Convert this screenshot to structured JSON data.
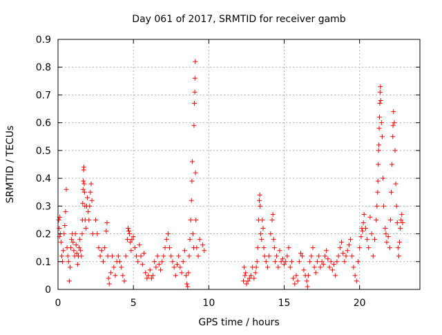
{
  "chart_data": {
    "type": "scatter",
    "title": "Day 061 of 2017, SRMTID for receiver gamb",
    "xlabel": "GPS time / hours",
    "ylabel": "SRMTID / TECUs",
    "xlim": [
      0,
      24
    ],
    "ylim": [
      0,
      0.9
    ],
    "xticks": [
      0,
      5,
      10,
      15,
      20
    ],
    "yticks": [
      0,
      0.1,
      0.2,
      0.3,
      0.4,
      0.5,
      0.6,
      0.7,
      0.8,
      0.9
    ],
    "xtick_labels": [
      "0",
      "5",
      "10",
      "15",
      "20"
    ],
    "ytick_labels": [
      "0",
      "0.1",
      "0.2",
      "0.3",
      "0.4",
      "0.5",
      "0.6",
      "0.7",
      "0.8",
      "0.9"
    ],
    "grid": true,
    "marker": "+",
    "marker_color": "#ff0000",
    "series": [
      {
        "name": "SRMTID",
        "points": [
          [
            0.05,
            0.25
          ],
          [
            0.08,
            0.22
          ],
          [
            0.1,
            0.19
          ],
          [
            0.12,
            0.26
          ],
          [
            0.15,
            0.2
          ],
          [
            0.2,
            0.17
          ],
          [
            0.25,
            0.12
          ],
          [
            0.3,
            0.1
          ],
          [
            0.35,
            0.14
          ],
          [
            0.4,
            0.2
          ],
          [
            0.45,
            0.23
          ],
          [
            0.5,
            0.28
          ],
          [
            0.55,
            0.36
          ],
          [
            0.6,
            0.15
          ],
          [
            0.65,
            0.12
          ],
          [
            0.7,
            0.1
          ],
          [
            0.75,
            0.03
          ],
          [
            0.8,
            0.08
          ],
          [
            0.85,
            0.15
          ],
          [
            0.9,
            0.18
          ],
          [
            0.95,
            0.2
          ],
          [
            1.0,
            0.17
          ],
          [
            1.05,
            0.14
          ],
          [
            1.1,
            0.12
          ],
          [
            1.15,
            0.2
          ],
          [
            1.2,
            0.16
          ],
          [
            1.25,
            0.13
          ],
          [
            1.3,
            0.09
          ],
          [
            1.35,
            0.12
          ],
          [
            1.4,
            0.15
          ],
          [
            1.45,
            0.18
          ],
          [
            1.5,
            0.14
          ],
          [
            1.55,
            0.12
          ],
          [
            1.6,
            0.2
          ],
          [
            1.62,
            0.25
          ],
          [
            1.64,
            0.31
          ],
          [
            1.66,
            0.36
          ],
          [
            1.68,
            0.39
          ],
          [
            1.7,
            0.43
          ],
          [
            1.72,
            0.44
          ],
          [
            1.74,
            0.38
          ],
          [
            1.76,
            0.35
          ],
          [
            1.78,
            0.3
          ],
          [
            1.8,
            0.25
          ],
          [
            1.85,
            0.22
          ],
          [
            1.9,
            0.3
          ],
          [
            1.95,
            0.33
          ],
          [
            2.0,
            0.28
          ],
          [
            2.05,
            0.25
          ],
          [
            2.1,
            0.3
          ],
          [
            2.15,
            0.35
          ],
          [
            2.2,
            0.38
          ],
          [
            2.25,
            0.32
          ],
          [
            2.3,
            0.2
          ],
          [
            2.5,
            0.25
          ],
          [
            2.6,
            0.2
          ],
          [
            2.7,
            0.15
          ],
          [
            2.8,
            0.12
          ],
          [
            2.9,
            0.14
          ],
          [
            3.0,
            0.1
          ],
          [
            3.1,
            0.15
          ],
          [
            3.2,
            0.21
          ],
          [
            3.25,
            0.24
          ],
          [
            3.3,
            0.12
          ],
          [
            3.35,
            0.04
          ],
          [
            3.4,
            0.02
          ],
          [
            3.5,
            0.06
          ],
          [
            3.6,
            0.12
          ],
          [
            3.7,
            0.08
          ],
          [
            3.8,
            0.05
          ],
          [
            3.9,
            0.1
          ],
          [
            4.0,
            0.12
          ],
          [
            4.1,
            0.1
          ],
          [
            4.2,
            0.08
          ],
          [
            4.3,
            0.05
          ],
          [
            4.4,
            0.03
          ],
          [
            4.5,
            0.12
          ],
          [
            4.6,
            0.18
          ],
          [
            4.65,
            0.22
          ],
          [
            4.7,
            0.21
          ],
          [
            4.75,
            0.2
          ],
          [
            4.8,
            0.17
          ],
          [
            4.85,
            0.14
          ],
          [
            4.9,
            0.18
          ],
          [
            5.0,
            0.19
          ],
          [
            5.1,
            0.15
          ],
          [
            5.2,
            0.12
          ],
          [
            5.3,
            0.1
          ],
          [
            5.4,
            0.16
          ],
          [
            5.5,
            0.12
          ],
          [
            5.6,
            0.09
          ],
          [
            5.7,
            0.13
          ],
          [
            5.8,
            0.06
          ],
          [
            5.9,
            0.04
          ],
          [
            6.0,
            0.05
          ],
          [
            6.1,
            0.07
          ],
          [
            6.2,
            0.04
          ],
          [
            6.3,
            0.05
          ],
          [
            6.4,
            0.1
          ],
          [
            6.5,
            0.08
          ],
          [
            6.6,
            0.12
          ],
          [
            6.7,
            0.09
          ],
          [
            6.8,
            0.07
          ],
          [
            6.9,
            0.1
          ],
          [
            7.0,
            0.12
          ],
          [
            7.1,
            0.15
          ],
          [
            7.2,
            0.18
          ],
          [
            7.3,
            0.2
          ],
          [
            7.4,
            0.15
          ],
          [
            7.5,
            0.12
          ],
          [
            7.6,
            0.1
          ],
          [
            7.7,
            0.08
          ],
          [
            7.8,
            0.05
          ],
          [
            7.9,
            0.09
          ],
          [
            8.0,
            0.12
          ],
          [
            8.1,
            0.08
          ],
          [
            8.2,
            0.06
          ],
          [
            8.3,
            0.1
          ],
          [
            8.4,
            0.14
          ],
          [
            8.5,
            0.05
          ],
          [
            8.55,
            0.02
          ],
          [
            8.6,
            0.01
          ],
          [
            8.65,
            0.06
          ],
          [
            8.7,
            0.12
          ],
          [
            8.75,
            0.18
          ],
          [
            8.8,
            0.25
          ],
          [
            8.85,
            0.32
          ],
          [
            8.88,
            0.39
          ],
          [
            8.9,
            0.46
          ],
          [
            8.95,
            0.2
          ],
          [
            9.0,
            0.15
          ],
          [
            9.02,
            0.59
          ],
          [
            9.05,
            0.67
          ],
          [
            9.07,
            0.71
          ],
          [
            9.08,
            0.76
          ],
          [
            9.1,
            0.82
          ],
          [
            9.12,
            0.42
          ],
          [
            9.15,
            0.25
          ],
          [
            9.2,
            0.15
          ],
          [
            9.3,
            0.12
          ],
          [
            9.4,
            0.18
          ],
          [
            9.6,
            0.16
          ],
          [
            9.7,
            0.14
          ],
          [
            12.3,
            0.03
          ],
          [
            12.35,
            0.08
          ],
          [
            12.4,
            0.05
          ],
          [
            12.45,
            0.06
          ],
          [
            12.5,
            0.02
          ],
          [
            12.6,
            0.03
          ],
          [
            12.7,
            0.04
          ],
          [
            12.8,
            0.05
          ],
          [
            12.9,
            0.08
          ],
          [
            13.0,
            0.04
          ],
          [
            13.1,
            0.06
          ],
          [
            13.15,
            0.08
          ],
          [
            13.2,
            0.1
          ],
          [
            13.25,
            0.15
          ],
          [
            13.3,
            0.25
          ],
          [
            13.35,
            0.32
          ],
          [
            13.38,
            0.34
          ],
          [
            13.4,
            0.3
          ],
          [
            13.45,
            0.2
          ],
          [
            13.5,
            0.18
          ],
          [
            13.55,
            0.25
          ],
          [
            13.6,
            0.22
          ],
          [
            13.65,
            0.15
          ],
          [
            13.7,
            0.12
          ],
          [
            13.8,
            0.1
          ],
          [
            13.9,
            0.08
          ],
          [
            14.0,
            0.12
          ],
          [
            14.1,
            0.2
          ],
          [
            14.2,
            0.25
          ],
          [
            14.25,
            0.27
          ],
          [
            14.3,
            0.18
          ],
          [
            14.35,
            0.15
          ],
          [
            14.4,
            0.1
          ],
          [
            14.5,
            0.12
          ],
          [
            14.6,
            0.08
          ],
          [
            14.7,
            0.14
          ],
          [
            14.8,
            0.1
          ],
          [
            14.9,
            0.11
          ],
          [
            15.0,
            0.09
          ],
          [
            15.1,
            0.1
          ],
          [
            15.2,
            0.12
          ],
          [
            15.3,
            0.15
          ],
          [
            15.4,
            0.08
          ],
          [
            15.5,
            0.1
          ],
          [
            15.6,
            0.04
          ],
          [
            15.7,
            0.02
          ],
          [
            15.8,
            0.05
          ],
          [
            15.9,
            0.03
          ],
          [
            16.0,
            0.1
          ],
          [
            16.1,
            0.13
          ],
          [
            16.2,
            0.12
          ],
          [
            16.3,
            0.07
          ],
          [
            16.4,
            0.05
          ],
          [
            16.5,
            0.03
          ],
          [
            16.55,
            0.01
          ],
          [
            16.6,
            0.05
          ],
          [
            16.7,
            0.1
          ],
          [
            16.8,
            0.12
          ],
          [
            16.9,
            0.15
          ],
          [
            17.0,
            0.08
          ],
          [
            17.1,
            0.06
          ],
          [
            17.2,
            0.1
          ],
          [
            17.3,
            0.12
          ],
          [
            17.4,
            0.08
          ],
          [
            17.5,
            0.1
          ],
          [
            17.6,
            0.09
          ],
          [
            17.7,
            0.12
          ],
          [
            17.8,
            0.14
          ],
          [
            17.9,
            0.11
          ],
          [
            18.0,
            0.08
          ],
          [
            18.1,
            0.1
          ],
          [
            18.2,
            0.07
          ],
          [
            18.3,
            0.09
          ],
          [
            18.4,
            0.05
          ],
          [
            18.5,
            0.1
          ],
          [
            18.6,
            0.12
          ],
          [
            18.7,
            0.15
          ],
          [
            18.8,
            0.17
          ],
          [
            18.9,
            0.13
          ],
          [
            19.0,
            0.1
          ],
          [
            19.1,
            0.12
          ],
          [
            19.2,
            0.14
          ],
          [
            19.3,
            0.16
          ],
          [
            19.4,
            0.18
          ],
          [
            19.5,
            0.12
          ],
          [
            19.6,
            0.08
          ],
          [
            19.7,
            0.05
          ],
          [
            19.8,
            0.03
          ],
          [
            19.9,
            0.1
          ],
          [
            20.0,
            0.15
          ],
          [
            20.1,
            0.19
          ],
          [
            20.15,
            0.22
          ],
          [
            20.2,
            0.21
          ],
          [
            20.25,
            0.24
          ],
          [
            20.3,
            0.27
          ],
          [
            20.4,
            0.22
          ],
          [
            20.5,
            0.18
          ],
          [
            20.6,
            0.15
          ],
          [
            20.7,
            0.26
          ],
          [
            20.8,
            0.2
          ],
          [
            20.9,
            0.12
          ],
          [
            21.0,
            0.18
          ],
          [
            21.1,
            0.25
          ],
          [
            21.15,
            0.3
          ],
          [
            21.2,
            0.35
          ],
          [
            21.22,
            0.39
          ],
          [
            21.24,
            0.45
          ],
          [
            21.26,
            0.5
          ],
          [
            21.28,
            0.52
          ],
          [
            21.3,
            0.58
          ],
          [
            21.32,
            0.62
          ],
          [
            21.34,
            0.67
          ],
          [
            21.36,
            0.71
          ],
          [
            21.38,
            0.73
          ],
          [
            21.4,
            0.68
          ],
          [
            21.45,
            0.6
          ],
          [
            21.5,
            0.55
          ],
          [
            21.55,
            0.4
          ],
          [
            21.6,
            0.3
          ],
          [
            21.7,
            0.22
          ],
          [
            21.75,
            0.2
          ],
          [
            21.8,
            0.17
          ],
          [
            21.9,
            0.19
          ],
          [
            22.0,
            0.15
          ],
          [
            22.05,
            0.25
          ],
          [
            22.1,
            0.35
          ],
          [
            22.15,
            0.45
          ],
          [
            22.2,
            0.55
          ],
          [
            22.22,
            0.59
          ],
          [
            22.25,
            0.64
          ],
          [
            22.3,
            0.6
          ],
          [
            22.35,
            0.5
          ],
          [
            22.4,
            0.38
          ],
          [
            22.45,
            0.3
          ],
          [
            22.5,
            0.24
          ],
          [
            22.55,
            0.15
          ],
          [
            22.6,
            0.12
          ],
          [
            22.65,
            0.17
          ],
          [
            22.7,
            0.22
          ],
          [
            22.75,
            0.25
          ],
          [
            22.8,
            0.27
          ],
          [
            22.85,
            0.24
          ]
        ]
      }
    ]
  }
}
